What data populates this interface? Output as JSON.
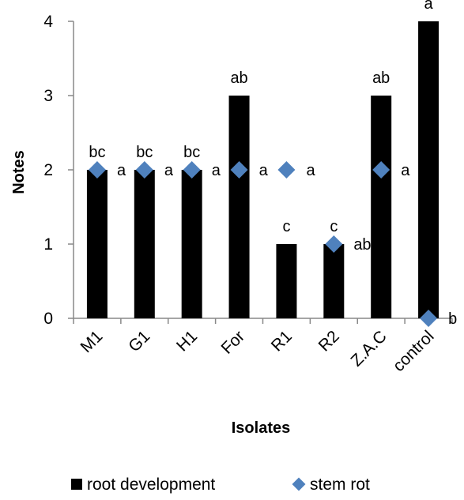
{
  "chart_data": {
    "type": "bar",
    "xlabel": "Isolates",
    "ylabel": "Notes",
    "ylim": [
      0,
      4
    ],
    "yticks": [
      0,
      1,
      2,
      3,
      4
    ],
    "categories": [
      "M1",
      "G1",
      "H1",
      "For",
      "R1",
      "R2",
      "Z.A.C",
      "control"
    ],
    "series": [
      {
        "name": "root development",
        "type": "bar",
        "color": "#000000",
        "values": [
          2,
          2,
          2,
          3,
          1,
          1,
          3,
          4
        ],
        "labels": [
          "bc",
          "bc",
          "bc",
          "ab",
          "c",
          "c",
          "ab",
          "a"
        ]
      },
      {
        "name": "stem rot",
        "type": "scatter",
        "marker": "diamond",
        "color": "#4F81BD",
        "values": [
          2,
          2,
          2,
          2,
          2,
          1,
          2,
          0
        ],
        "labels": [
          "a",
          "a",
          "a",
          "a",
          "a",
          "ab",
          "a",
          "b"
        ]
      }
    ],
    "legend_position": "bottom",
    "grid": false
  }
}
